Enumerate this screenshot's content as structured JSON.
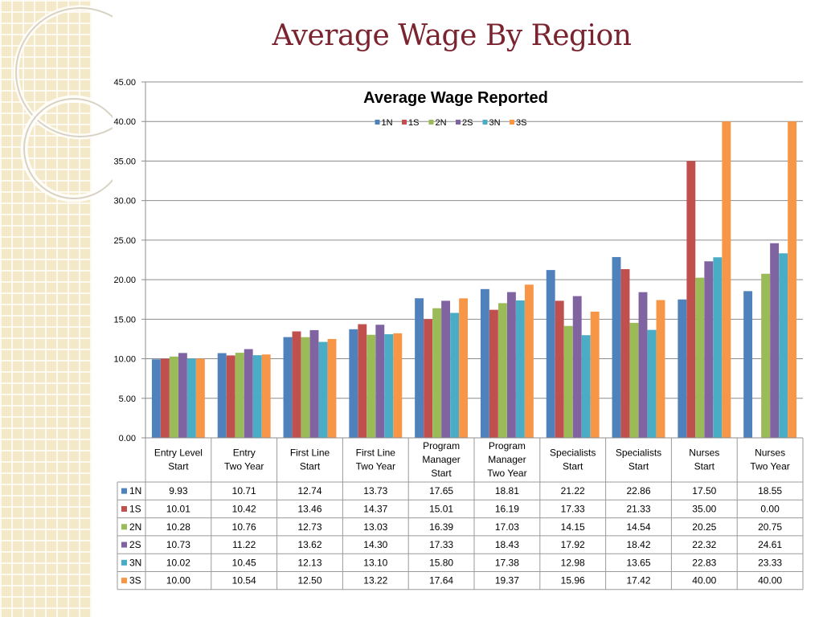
{
  "slide": {
    "title": "Average Wage By Region"
  },
  "colors": {
    "title": "#7a2430",
    "series": [
      "#4f81bd",
      "#c0504d",
      "#9bbb59",
      "#8064a2",
      "#4bacc6",
      "#f79646"
    ]
  },
  "chart_data": {
    "type": "bar",
    "title": "Average Wage Reported",
    "legend_position": "top",
    "grid": true,
    "ylim": [
      0,
      45
    ],
    "y_ticks": [
      "0.00",
      "5.00",
      "10.00",
      "15.00",
      "20.00",
      "25.00",
      "30.00",
      "35.00",
      "40.00",
      "45.00"
    ],
    "categories": [
      [
        "Entry Level",
        "Start"
      ],
      [
        "Entry",
        "Two Year"
      ],
      [
        "First Line",
        "Start"
      ],
      [
        "First Line",
        "Two Year"
      ],
      [
        "Program",
        "Manager",
        "Start"
      ],
      [
        "Program",
        "Manager",
        "Two Year"
      ],
      [
        "Specialists",
        "Start"
      ],
      [
        "Specialists",
        "Start"
      ],
      [
        "Nurses",
        "Start"
      ],
      [
        "Nurses",
        "Two Year"
      ]
    ],
    "series": [
      {
        "name": "1N",
        "values": [
          9.93,
          10.71,
          12.74,
          13.73,
          17.65,
          18.81,
          21.22,
          22.86,
          17.5,
          18.55
        ],
        "labels": [
          "9.93",
          "10.71",
          "12.74",
          "13.73",
          "17.65",
          "18.81",
          "21.22",
          "22.86",
          "17.50",
          "18.55"
        ]
      },
      {
        "name": "1S",
        "values": [
          10.01,
          10.42,
          13.46,
          14.37,
          15.01,
          16.19,
          17.33,
          21.33,
          35.0,
          0.0
        ],
        "labels": [
          "10.01",
          "10.42",
          "13.46",
          "14.37",
          "15.01",
          "16.19",
          "17.33",
          "21.33",
          "35.00",
          "0.00"
        ]
      },
      {
        "name": "2N",
        "values": [
          10.28,
          10.76,
          12.73,
          13.03,
          16.39,
          17.03,
          14.15,
          14.54,
          20.25,
          20.75
        ],
        "labels": [
          "10.28",
          "10.76",
          "12.73",
          "13.03",
          "16.39",
          "17.03",
          "14.15",
          "14.54",
          "20.25",
          "20.75"
        ]
      },
      {
        "name": "2S",
        "values": [
          10.73,
          11.22,
          13.62,
          14.3,
          17.33,
          18.43,
          17.92,
          18.42,
          22.32,
          24.61
        ],
        "labels": [
          "10.73",
          "11.22",
          "13.62",
          "14.30",
          "17.33",
          "18.43",
          "17.92",
          "18.42",
          "22.32",
          "24.61"
        ]
      },
      {
        "name": "3N",
        "values": [
          10.02,
          10.45,
          12.13,
          13.1,
          15.8,
          17.38,
          12.98,
          13.65,
          22.83,
          23.33
        ],
        "labels": [
          "10.02",
          "10.45",
          "12.13",
          "13.10",
          "15.80",
          "17.38",
          "12.98",
          "13.65",
          "22.83",
          "23.33"
        ]
      },
      {
        "name": "3S",
        "values": [
          10.0,
          10.54,
          12.5,
          13.22,
          17.64,
          19.37,
          15.96,
          17.42,
          40.0,
          40.0
        ],
        "labels": [
          "10.00",
          "10.54",
          "12.50",
          "13.22",
          "17.64",
          "19.37",
          "15.96",
          "17.42",
          "40.00",
          "40.00"
        ]
      }
    ]
  }
}
